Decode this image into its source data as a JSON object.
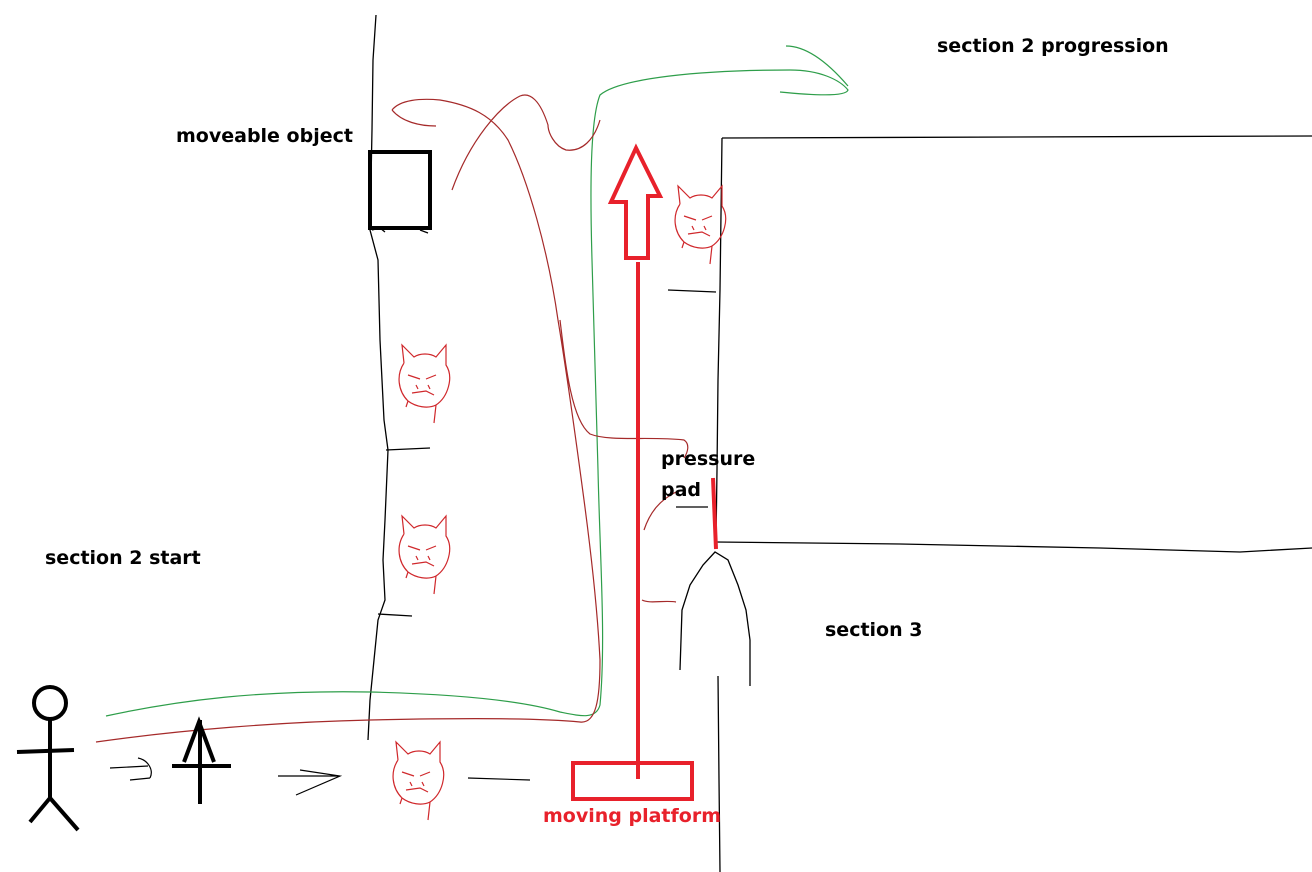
{
  "labels": {
    "moveable_object": "moveable object",
    "section2_progression": "section 2 progression",
    "section2_start": "section 2 start",
    "pressure": "pressure",
    "pad": "pad",
    "section3": "section 3",
    "moving_platform": "moving platform"
  },
  "colors": {
    "ink": "#000000",
    "platform_red": "#e8212b",
    "path_red": "#a52a2a",
    "path_green": "#2e9e4a",
    "enemy_red": "#d0282c"
  },
  "icons": [
    "stick-figure-icon",
    "arrow-up-icon",
    "enemy-face-icon"
  ]
}
